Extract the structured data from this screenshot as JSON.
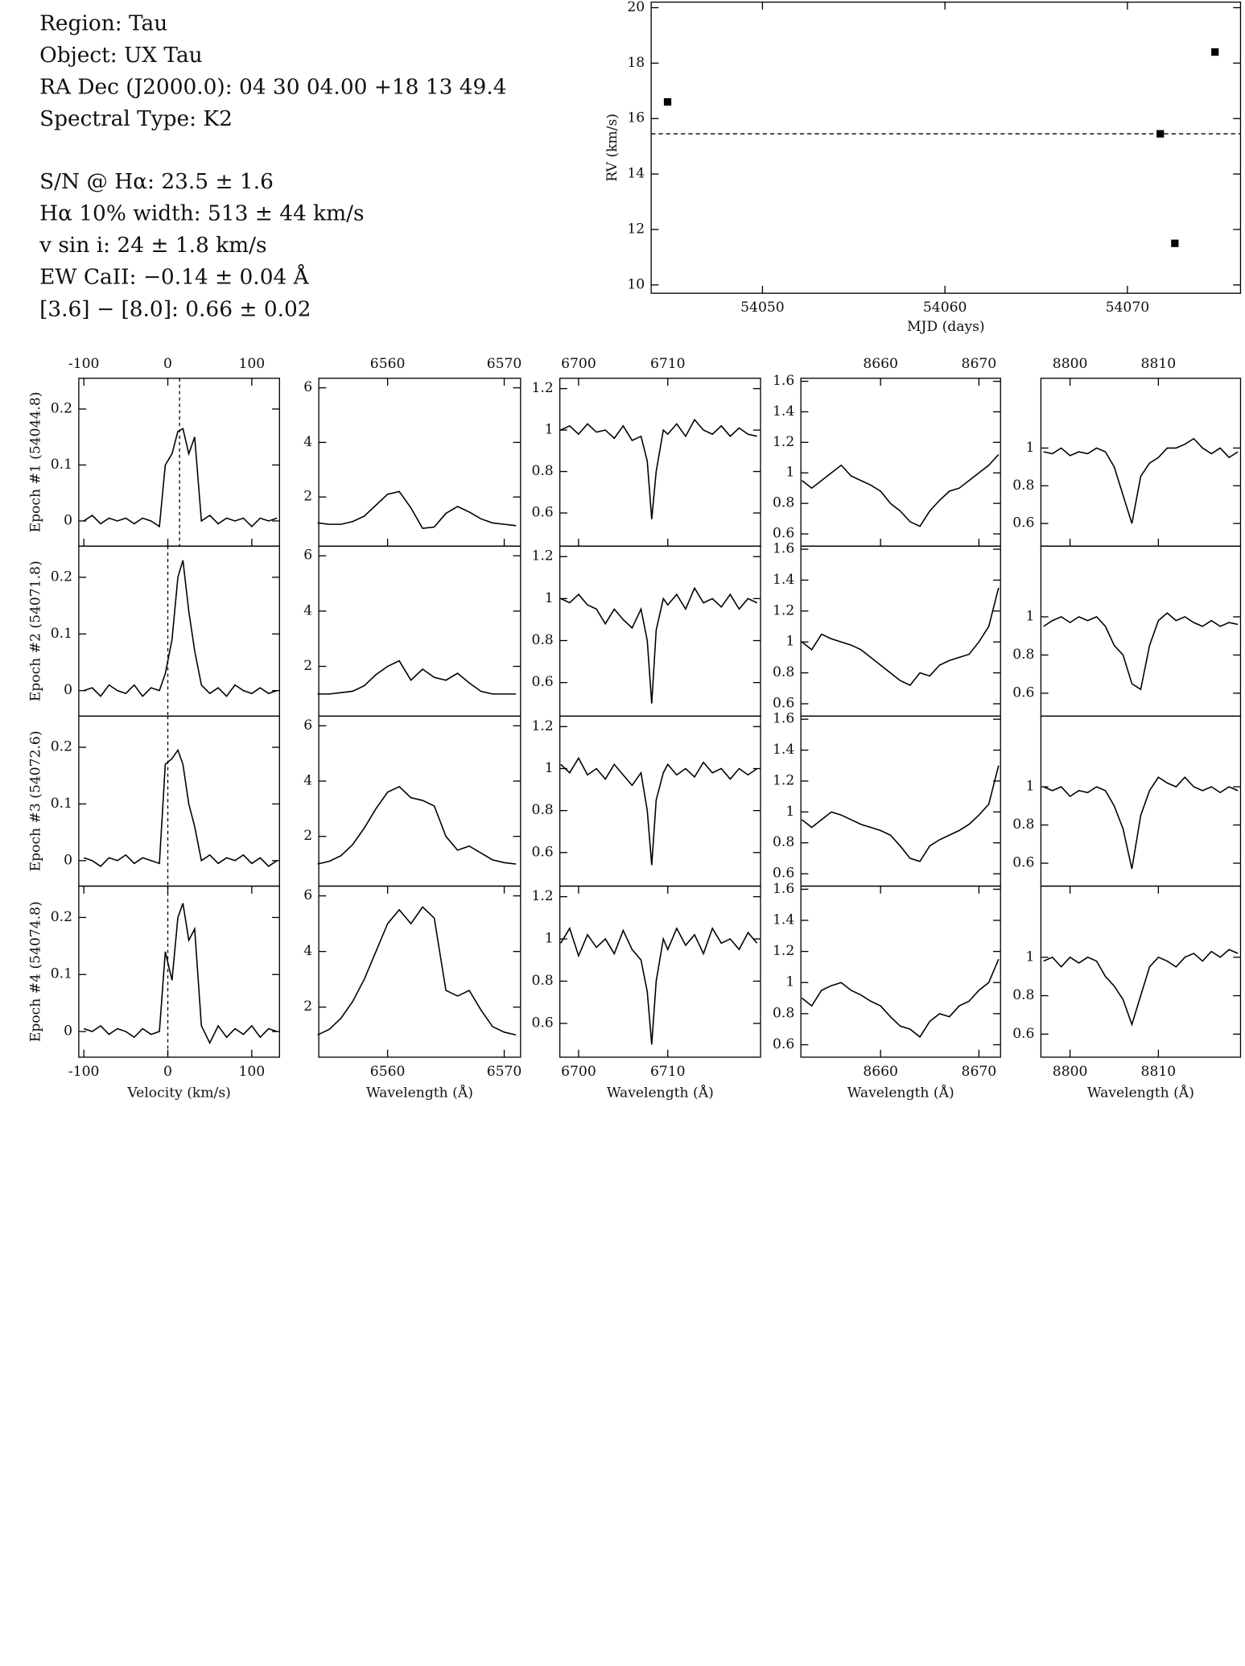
{
  "info": {
    "target": [
      "Region: Tau",
      "Object: UX Tau",
      "RA Dec (J2000.0): 04 30 04.00 +18 13 49.4",
      "Spectral Type: K2"
    ],
    "measurements": [
      "S/N @ Hα: 23.5 ± 1.6",
      "Hα 10% width: 513 ± 44 km/s",
      "v sin i: 24 ± 1.8 km/s",
      "EW CaII: −0.14 ± 0.04 Å",
      "[3.6] − [8.0]: 0.66 ± 0.02"
    ]
  },
  "chart_data": [
    {
      "type": "scatter",
      "x": [
        54044.8,
        54071.8,
        54072.6,
        54074.8
      ],
      "values": [
        16.6,
        15.45,
        11.5,
        18.4
      ],
      "hline": 15.45,
      "color": "#000000",
      "xlim": [
        54043.9,
        54076.2
      ],
      "ylim": [
        9.7,
        20.2
      ],
      "xticks": [
        54050,
        54060,
        54070
      ],
      "yticks": [
        10,
        12,
        14,
        16,
        18,
        20
      ],
      "xlabel": "MJD (days)",
      "ylabel": "RV (km/s)"
    },
    {
      "type": "line",
      "x": [
        -100,
        -90,
        -80,
        -70,
        -60,
        -50,
        -40,
        -30,
        -20,
        -10,
        -3,
        5,
        12,
        18,
        25,
        32,
        40,
        50,
        60,
        70,
        80,
        90,
        100,
        110,
        120,
        130
      ],
      "values": [
        0,
        0.01,
        -0.005,
        0.005,
        0,
        0.005,
        -0.005,
        0.005,
        0,
        -0.01,
        0.1,
        0.12,
        0.16,
        0.165,
        0.12,
        0.15,
        0,
        0.01,
        -0.005,
        0.005,
        0,
        0.005,
        -0.01,
        0.005,
        0,
        0.005
      ],
      "vline": 14,
      "xlim": [
        -106,
        133
      ],
      "ylim": [
        -0.045,
        0.255
      ],
      "yticks": [
        0,
        0.1,
        0.2
      ],
      "xticks": [
        -100,
        0,
        100
      ],
      "xaxis": "top",
      "ylabel": "Epoch #1 (54044.8)"
    },
    {
      "type": "line",
      "x": [
        -100,
        -90,
        -80,
        -70,
        -60,
        -50,
        -40,
        -30,
        -20,
        -10,
        -3,
        5,
        12,
        18,
        25,
        32,
        40,
        50,
        60,
        70,
        80,
        90,
        100,
        110,
        120,
        130
      ],
      "values": [
        0,
        0.005,
        -0.01,
        0.01,
        0,
        -0.005,
        0.01,
        -0.01,
        0.005,
        0,
        0.03,
        0.09,
        0.2,
        0.23,
        0.14,
        0.07,
        0.01,
        -0.005,
        0.005,
        -0.01,
        0.01,
        0,
        -0.005,
        0.005,
        -0.005,
        0
      ],
      "vline": 0,
      "xlim": [
        -106,
        133
      ],
      "ylim": [
        -0.045,
        0.255
      ],
      "yticks": [
        0,
        0.1,
        0.2
      ],
      "ylabel": "Epoch #2 (54071.8)"
    },
    {
      "type": "line",
      "x": [
        -100,
        -90,
        -80,
        -70,
        -60,
        -50,
        -40,
        -30,
        -20,
        -10,
        -3,
        5,
        12,
        18,
        25,
        32,
        40,
        50,
        60,
        70,
        80,
        90,
        100,
        110,
        120,
        130
      ],
      "values": [
        0.005,
        0,
        -0.01,
        0.005,
        0,
        0.01,
        -0.005,
        0.005,
        0,
        -0.005,
        0.17,
        0.18,
        0.195,
        0.17,
        0.1,
        0.06,
        0,
        0.01,
        -0.005,
        0.005,
        0,
        0.01,
        -0.005,
        0.005,
        -0.01,
        0
      ],
      "vline": 0,
      "xlim": [
        -106,
        133
      ],
      "ylim": [
        -0.045,
        0.255
      ],
      "yticks": [
        0,
        0.1,
        0.2
      ],
      "ylabel": "Epoch #3 (54072.6)"
    },
    {
      "type": "line",
      "x": [
        -100,
        -90,
        -80,
        -70,
        -60,
        -50,
        -40,
        -30,
        -20,
        -10,
        -3,
        5,
        12,
        18,
        25,
        32,
        40,
        50,
        60,
        70,
        80,
        90,
        100,
        110,
        120,
        130
      ],
      "values": [
        0.005,
        0,
        0.01,
        -0.005,
        0.005,
        0,
        -0.01,
        0.005,
        -0.005,
        0,
        0.14,
        0.09,
        0.2,
        0.225,
        0.16,
        0.18,
        0.01,
        -0.02,
        0.01,
        -0.01,
        0.005,
        -0.005,
        0.01,
        -0.01,
        0.005,
        0
      ],
      "vline": 0,
      "xlim": [
        -106,
        133
      ],
      "ylim": [
        -0.045,
        0.255
      ],
      "yticks": [
        0,
        0.1,
        0.2
      ],
      "xticks": [
        -100,
        0,
        100
      ],
      "xaxis": "bottom",
      "ylabel": "Epoch #4 (54074.8)",
      "xlabel": "Velocity (km/s)"
    },
    {
      "type": "line",
      "x": [
        6554,
        6555,
        6556,
        6557,
        6558,
        6559,
        6560,
        6561,
        6562,
        6563,
        6564,
        6565,
        6566,
        6567,
        6568,
        6569,
        6570,
        6571
      ],
      "values": [
        1.05,
        1.0,
        1.0,
        1.1,
        1.3,
        1.7,
        2.1,
        2.2,
        1.6,
        0.85,
        0.9,
        1.4,
        1.65,
        1.45,
        1.2,
        1.05,
        1.0,
        0.95
      ],
      "xlim": [
        6554.1,
        6571.4
      ],
      "ylim": [
        0.2,
        6.35
      ],
      "yticks": [
        2,
        4,
        6
      ],
      "xticks": [
        6560,
        6570
      ],
      "xaxis": "top"
    },
    {
      "type": "line",
      "x": [
        6554,
        6555,
        6556,
        6557,
        6558,
        6559,
        6560,
        6561,
        6562,
        6563,
        6564,
        6565,
        6566,
        6567,
        6568,
        6569,
        6570,
        6571
      ],
      "values": [
        1.0,
        1.0,
        1.05,
        1.1,
        1.3,
        1.7,
        2.0,
        2.2,
        1.5,
        1.9,
        1.6,
        1.5,
        1.75,
        1.4,
        1.1,
        1.0,
        1.0,
        1.0
      ],
      "xlim": [
        6554.1,
        6571.4
      ],
      "ylim": [
        0.2,
        6.35
      ],
      "yticks": [
        2,
        4,
        6
      ]
    },
    {
      "type": "line",
      "x": [
        6554,
        6555,
        6556,
        6557,
        6558,
        6559,
        6560,
        6561,
        6562,
        6563,
        6564,
        6565,
        6566,
        6567,
        6568,
        6569,
        6570,
        6571
      ],
      "values": [
        1.0,
        1.1,
        1.3,
        1.7,
        2.3,
        3.0,
        3.6,
        3.8,
        3.4,
        3.3,
        3.1,
        2.0,
        1.5,
        1.65,
        1.4,
        1.15,
        1.05,
        1.0
      ],
      "xlim": [
        6554.1,
        6571.4
      ],
      "ylim": [
        0.2,
        6.35
      ],
      "yticks": [
        2,
        4,
        6
      ]
    },
    {
      "type": "line",
      "x": [
        6554,
        6555,
        6556,
        6557,
        6558,
        6559,
        6560,
        6561,
        6562,
        6563,
        6564,
        6565,
        6566,
        6567,
        6568,
        6569,
        6570,
        6571
      ],
      "values": [
        1.0,
        1.2,
        1.6,
        2.2,
        3.0,
        4.0,
        5.0,
        5.5,
        5.0,
        5.6,
        5.2,
        2.6,
        2.4,
        2.6,
        1.9,
        1.3,
        1.1,
        1.0
      ],
      "xlim": [
        6554.1,
        6571.4
      ],
      "ylim": [
        0.2,
        6.35
      ],
      "yticks": [
        2,
        4,
        6
      ],
      "xticks": [
        6560,
        6570
      ],
      "xaxis": "bottom",
      "xlabel": "Wavelength (Å)"
    },
    {
      "type": "line",
      "x": [
        6698,
        6699,
        6700,
        6701,
        6702,
        6703,
        6704,
        6705,
        6706,
        6707,
        6707.7,
        6708.2,
        6708.7,
        6709.5,
        6710,
        6711,
        6712,
        6713,
        6714,
        6715,
        6716,
        6717,
        6718,
        6719,
        6720
      ],
      "values": [
        1.0,
        1.02,
        0.98,
        1.03,
        0.99,
        1.0,
        0.96,
        1.02,
        0.95,
        0.97,
        0.85,
        0.57,
        0.8,
        1.0,
        0.98,
        1.03,
        0.97,
        1.05,
        1.0,
        0.98,
        1.02,
        0.97,
        1.01,
        0.98,
        0.97
      ],
      "xlim": [
        6697.9,
        6720.4
      ],
      "ylim": [
        0.44,
        1.25
      ],
      "yticks": [
        0.6,
        0.8,
        1,
        1.2
      ],
      "xticks": [
        6700,
        6710
      ],
      "xaxis": "top"
    },
    {
      "type": "line",
      "x": [
        6698,
        6699,
        6700,
        6701,
        6702,
        6703,
        6704,
        6705,
        6706,
        6707,
        6707.7,
        6708.2,
        6708.7,
        6709.5,
        6710,
        6711,
        6712,
        6713,
        6714,
        6715,
        6716,
        6717,
        6718,
        6719,
        6720
      ],
      "values": [
        1.0,
        0.98,
        1.02,
        0.97,
        0.95,
        0.88,
        0.95,
        0.9,
        0.86,
        0.95,
        0.8,
        0.5,
        0.85,
        1.0,
        0.97,
        1.02,
        0.95,
        1.05,
        0.98,
        1.0,
        0.96,
        1.02,
        0.95,
        1.0,
        0.98
      ],
      "xlim": [
        6697.9,
        6720.4
      ],
      "ylim": [
        0.44,
        1.25
      ],
      "yticks": [
        0.6,
        0.8,
        1,
        1.2
      ]
    },
    {
      "type": "line",
      "x": [
        6698,
        6699,
        6700,
        6701,
        6702,
        6703,
        6704,
        6705,
        6706,
        6707,
        6707.7,
        6708.2,
        6708.7,
        6709.5,
        6710,
        6711,
        6712,
        6713,
        6714,
        6715,
        6716,
        6717,
        6718,
        6719,
        6720
      ],
      "values": [
        1.02,
        0.98,
        1.05,
        0.97,
        1.0,
        0.95,
        1.02,
        0.97,
        0.92,
        0.98,
        0.8,
        0.54,
        0.85,
        0.98,
        1.02,
        0.97,
        1.0,
        0.96,
        1.03,
        0.98,
        1.0,
        0.95,
        1.0,
        0.97,
        1.0
      ],
      "xlim": [
        6697.9,
        6720.4
      ],
      "ylim": [
        0.44,
        1.25
      ],
      "yticks": [
        0.6,
        0.8,
        1,
        1.2
      ]
    },
    {
      "type": "line",
      "x": [
        6698,
        6699,
        6700,
        6701,
        6702,
        6703,
        6704,
        6705,
        6706,
        6707,
        6707.7,
        6708.2,
        6708.7,
        6709.5,
        6710,
        6711,
        6712,
        6713,
        6714,
        6715,
        6716,
        6717,
        6718,
        6719,
        6720
      ],
      "values": [
        0.98,
        1.05,
        0.92,
        1.02,
        0.96,
        1.0,
        0.93,
        1.04,
        0.95,
        0.9,
        0.75,
        0.5,
        0.8,
        1.0,
        0.95,
        1.05,
        0.97,
        1.02,
        0.93,
        1.05,
        0.98,
        1.0,
        0.95,
        1.03,
        0.98
      ],
      "xlim": [
        6697.9,
        6720.4
      ],
      "ylim": [
        0.44,
        1.25
      ],
      "yticks": [
        0.6,
        0.8,
        1,
        1.2
      ],
      "xticks": [
        6700,
        6710
      ],
      "xaxis": "bottom",
      "xlabel": "Wavelength (Å)"
    },
    {
      "type": "line",
      "x": [
        8652,
        8653,
        8654,
        8655,
        8656,
        8657,
        8658,
        8659,
        8660,
        8661,
        8662,
        8663,
        8664,
        8665,
        8666,
        8667,
        8668,
        8669,
        8670,
        8671,
        8672
      ],
      "values": [
        0.95,
        0.9,
        0.95,
        1.0,
        1.05,
        0.98,
        0.95,
        0.92,
        0.88,
        0.8,
        0.75,
        0.68,
        0.65,
        0.75,
        0.82,
        0.88,
        0.9,
        0.95,
        1.0,
        1.05,
        1.12
      ],
      "xlim": [
        8651.9,
        8672.2
      ],
      "ylim": [
        0.52,
        1.62
      ],
      "yticks": [
        0.6,
        0.8,
        1,
        1.2,
        1.4,
        1.6
      ],
      "xticks": [
        8660,
        8670
      ],
      "xaxis": "top"
    },
    {
      "type": "line",
      "x": [
        8652,
        8653,
        8654,
        8655,
        8656,
        8657,
        8658,
        8659,
        8660,
        8661,
        8662,
        8663,
        8664,
        8665,
        8666,
        8667,
        8668,
        8669,
        8670,
        8671,
        8672
      ],
      "values": [
        1.0,
        0.95,
        1.05,
        1.02,
        1.0,
        0.98,
        0.95,
        0.9,
        0.85,
        0.8,
        0.75,
        0.72,
        0.8,
        0.78,
        0.85,
        0.88,
        0.9,
        0.92,
        1.0,
        1.1,
        1.35
      ],
      "xlim": [
        8651.9,
        8672.2
      ],
      "ylim": [
        0.52,
        1.62
      ],
      "yticks": [
        0.6,
        0.8,
        1,
        1.2,
        1.4,
        1.6
      ]
    },
    {
      "type": "line",
      "x": [
        8652,
        8653,
        8654,
        8655,
        8656,
        8657,
        8658,
        8659,
        8660,
        8661,
        8662,
        8663,
        8664,
        8665,
        8666,
        8667,
        8668,
        8669,
        8670,
        8671,
        8672
      ],
      "values": [
        0.95,
        0.9,
        0.95,
        1.0,
        0.98,
        0.95,
        0.92,
        0.9,
        0.88,
        0.85,
        0.78,
        0.7,
        0.68,
        0.78,
        0.82,
        0.85,
        0.88,
        0.92,
        0.98,
        1.05,
        1.3
      ],
      "xlim": [
        8651.9,
        8672.2
      ],
      "ylim": [
        0.52,
        1.62
      ],
      "yticks": [
        0.6,
        0.8,
        1,
        1.2,
        1.4,
        1.6
      ]
    },
    {
      "type": "line",
      "x": [
        8652,
        8653,
        8654,
        8655,
        8656,
        8657,
        8658,
        8659,
        8660,
        8661,
        8662,
        8663,
        8664,
        8665,
        8666,
        8667,
        8668,
        8669,
        8670,
        8671,
        8672
      ],
      "values": [
        0.9,
        0.85,
        0.95,
        0.98,
        1.0,
        0.95,
        0.92,
        0.88,
        0.85,
        0.78,
        0.72,
        0.7,
        0.65,
        0.75,
        0.8,
        0.78,
        0.85,
        0.88,
        0.95,
        1.0,
        1.15
      ],
      "xlim": [
        8651.9,
        8672.2
      ],
      "ylim": [
        0.52,
        1.62
      ],
      "yticks": [
        0.6,
        0.8,
        1,
        1.2,
        1.4,
        1.6
      ],
      "xticks": [
        8660,
        8670
      ],
      "xaxis": "bottom",
      "xlabel": "Wavelength (Å)"
    },
    {
      "type": "line",
      "x": [
        8797,
        8798,
        8799,
        8800,
        8801,
        8802,
        8803,
        8804,
        8805,
        8806,
        8807,
        8808,
        8809,
        8810,
        8811,
        8812,
        8813,
        8814,
        8815,
        8816,
        8817,
        8818,
        8819
      ],
      "values": [
        0.98,
        0.97,
        1.0,
        0.96,
        0.98,
        0.97,
        1.0,
        0.98,
        0.9,
        0.75,
        0.6,
        0.85,
        0.92,
        0.95,
        1.0,
        1.0,
        1.02,
        1.05,
        1.0,
        0.97,
        1.0,
        0.95,
        0.98
      ],
      "xlim": [
        8796.7,
        8819.3
      ],
      "ylim": [
        0.48,
        1.37
      ],
      "yticks": [
        0.6,
        0.8,
        1
      ],
      "xticks": [
        8800,
        8810
      ],
      "xaxis": "top"
    },
    {
      "type": "line",
      "x": [
        8797,
        8798,
        8799,
        8800,
        8801,
        8802,
        8803,
        8804,
        8805,
        8806,
        8807,
        8808,
        8809,
        8810,
        8811,
        8812,
        8813,
        8814,
        8815,
        8816,
        8817,
        8818,
        8819
      ],
      "values": [
        0.95,
        0.98,
        1.0,
        0.97,
        1.0,
        0.98,
        1.0,
        0.95,
        0.85,
        0.8,
        0.65,
        0.62,
        0.85,
        0.98,
        1.02,
        0.98,
        1.0,
        0.97,
        0.95,
        0.98,
        0.95,
        0.97,
        0.96
      ],
      "xlim": [
        8796.7,
        8819.3
      ],
      "ylim": [
        0.48,
        1.37
      ],
      "yticks": [
        0.6,
        0.8,
        1
      ]
    },
    {
      "type": "line",
      "x": [
        8797,
        8798,
        8799,
        8800,
        8801,
        8802,
        8803,
        8804,
        8805,
        8806,
        8807,
        8808,
        8809,
        8810,
        8811,
        8812,
        8813,
        8814,
        8815,
        8816,
        8817,
        8818,
        8819
      ],
      "values": [
        1.0,
        0.98,
        1.0,
        0.95,
        0.98,
        0.97,
        1.0,
        0.98,
        0.9,
        0.78,
        0.57,
        0.85,
        0.98,
        1.05,
        1.02,
        1.0,
        1.05,
        1.0,
        0.98,
        1.0,
        0.97,
        1.0,
        0.98
      ],
      "xlim": [
        8796.7,
        8819.3
      ],
      "ylim": [
        0.48,
        1.37
      ],
      "yticks": [
        0.6,
        0.8,
        1
      ]
    },
    {
      "type": "line",
      "x": [
        8797,
        8798,
        8799,
        8800,
        8801,
        8802,
        8803,
        8804,
        8805,
        8806,
        8807,
        8808,
        8809,
        8810,
        8811,
        8812,
        8813,
        8814,
        8815,
        8816,
        8817,
        8818,
        8819
      ],
      "values": [
        0.98,
        1.0,
        0.95,
        1.0,
        0.97,
        1.0,
        0.98,
        0.9,
        0.85,
        0.78,
        0.65,
        0.8,
        0.95,
        1.0,
        0.98,
        0.95,
        1.0,
        1.02,
        0.98,
        1.03,
        1.0,
        1.04,
        1.02
      ],
      "xlim": [
        8796.7,
        8819.3
      ],
      "ylim": [
        0.48,
        1.37
      ],
      "yticks": [
        0.6,
        0.8,
        1
      ],
      "xticks": [
        8800,
        8810
      ],
      "xaxis": "bottom",
      "xlabel": "Wavelength (Å)"
    }
  ]
}
